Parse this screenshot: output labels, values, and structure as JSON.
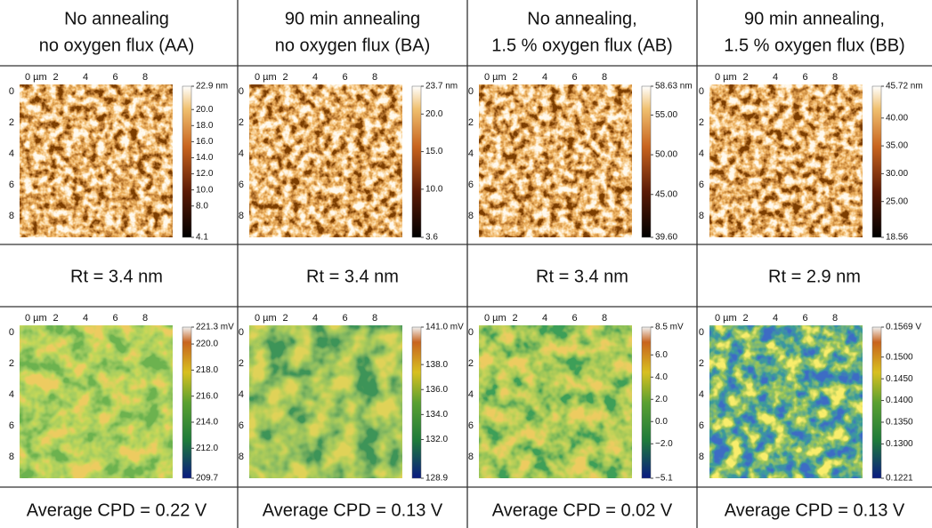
{
  "axis": {
    "x": [
      "0 µm",
      "2",
      "4",
      "6",
      "8"
    ],
    "y": [
      "0",
      "2",
      "4",
      "6",
      "8"
    ]
  },
  "panels": [
    {
      "header": [
        "No annealing",
        "no oxygen flux (AA)"
      ],
      "topography": {
        "colorbar": [
          {
            "value": 22.9,
            "label": "22.9 nm"
          },
          {
            "value": 20,
            "label": "20.0"
          },
          {
            "value": 18,
            "label": "18.0"
          },
          {
            "value": 16,
            "label": "16.0"
          },
          {
            "value": 14,
            "label": "14.0"
          },
          {
            "value": 12,
            "label": "12.0"
          },
          {
            "value": 10,
            "label": "10.0"
          },
          {
            "value": 8,
            "label": "8.0"
          },
          4.1
        ]
      },
      "rt": "Rt = 3.4 nm",
      "potential": {
        "colorbar": [
          {
            "value": 221.3,
            "label": "221.3 mV"
          },
          {
            "value": 220,
            "label": "220.0"
          },
          {
            "value": 218,
            "label": "218.0"
          },
          {
            "value": 216,
            "label": "216.0"
          },
          {
            "value": 214,
            "label": "214.0"
          },
          {
            "value": 212,
            "label": "212.0"
          },
          209.7
        ]
      },
      "cpd": "Average CPD = 0.22 V"
    },
    {
      "header": [
        "90 min annealing",
        "no oxygen flux (BA)"
      ],
      "topography": {
        "colorbar": [
          {
            "value": 23.7,
            "label": "23.7 nm"
          },
          {
            "value": 20,
            "label": "20.0"
          },
          {
            "value": 15,
            "label": "15.0"
          },
          {
            "value": 10,
            "label": "10.0"
          },
          3.6
        ]
      },
      "rt": "Rt = 3.4 nm",
      "potential": {
        "colorbar": [
          {
            "value": 141,
            "label": "141.0 mV"
          },
          {
            "value": 138,
            "label": "138.0"
          },
          {
            "value": 136,
            "label": "136.0"
          },
          {
            "value": 134,
            "label": "134.0"
          },
          {
            "value": 132,
            "label": "132.0"
          },
          128.9
        ]
      },
      "cpd": "Average CPD = 0.13 V"
    },
    {
      "header": [
        "No annealing,",
        "1.5 % oxygen flux (AB)"
      ],
      "topography": {
        "colorbar": [
          {
            "value": 58.63,
            "label": "58.63 nm"
          },
          {
            "value": 55,
            "label": "55.00"
          },
          {
            "value": 50,
            "label": "50.00"
          },
          {
            "value": 45,
            "label": "45.00"
          },
          {
            "value": 39.6,
            "label": "39.60"
          }
        ]
      },
      "rt": "Rt = 3.4 nm",
      "potential": {
        "colorbar": [
          {
            "value": 8.5,
            "label": "8.5 mV"
          },
          {
            "value": 6,
            "label": "6.0"
          },
          {
            "value": 4,
            "label": "4.0"
          },
          {
            "value": 2,
            "label": "2.0"
          },
          {
            "value": 0,
            "label": "0.0"
          },
          {
            "value": -2,
            "label": "−2.0"
          },
          {
            "value": -5.1,
            "label": "−5.1"
          }
        ]
      },
      "cpd": "Average CPD = 0.02 V"
    },
    {
      "header": [
        "90 min annealing,",
        "1.5 % oxygen flux (BB)"
      ],
      "topography": {
        "colorbar": [
          {
            "value": 45.72,
            "label": "45.72 nm"
          },
          {
            "value": 40,
            "label": "40.00"
          },
          {
            "value": 35,
            "label": "35.00"
          },
          {
            "value": 30,
            "label": "30.00"
          },
          {
            "value": 25,
            "label": "25.00"
          },
          18.56
        ]
      },
      "rt": "Rt = 2.9 nm",
      "potential": {
        "colorbar": [
          {
            "value": 0.1569,
            "label": "0.1569 V"
          },
          {
            "value": 0.15,
            "label": "0.1500"
          },
          {
            "value": 0.145,
            "label": "0.1450"
          },
          {
            "value": 0.14,
            "label": "0.1400"
          },
          {
            "value": 0.135,
            "label": "0.1350"
          },
          {
            "value": 0.13,
            "label": "0.1300"
          },
          0.1221
        ]
      },
      "cpd": "Average CPD = 0.13 V"
    }
  ]
}
